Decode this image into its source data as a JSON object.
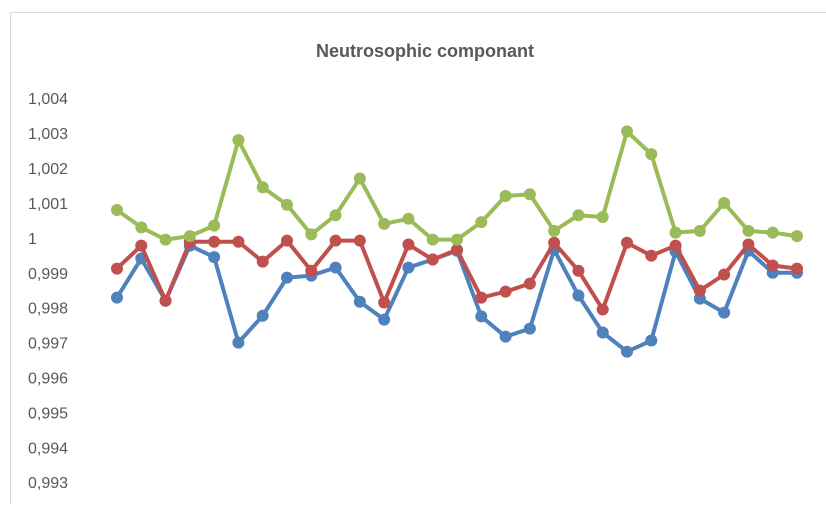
{
  "chart_data": {
    "type": "line",
    "title": "Neutrosophic componant",
    "categories": [
      null,
      null,
      null,
      null,
      null,
      null,
      null,
      null,
      null,
      null,
      null,
      null,
      null,
      null,
      null,
      null,
      null,
      null,
      null,
      null,
      null,
      null,
      null,
      null,
      null,
      null,
      null,
      null,
      null
    ],
    "series": [
      {
        "color": "#4f81bd",
        "values": [
          0.99834,
          0.99946,
          0.99825,
          0.99983,
          0.9995,
          0.99705,
          0.99782,
          0.99891,
          0.99897,
          0.9992,
          0.99822,
          0.99771,
          0.9992,
          0.99943,
          0.99968,
          0.9978,
          0.99722,
          0.99745,
          0.99971,
          0.9984,
          0.99734,
          0.99679,
          0.99711,
          0.99966,
          0.99831,
          0.99791,
          0.99968,
          0.99905,
          0.99905
        ]
      },
      {
        "color": "#c0504d",
        "values": [
          0.99917,
          0.99983,
          0.99825,
          0.99994,
          0.99994,
          0.99994,
          0.99937,
          0.99997,
          0.99911,
          0.99997,
          0.99997,
          0.9982,
          0.99986,
          0.99943,
          0.99971,
          0.99834,
          0.99851,
          0.99874,
          0.99991,
          0.99911,
          0.998,
          0.99991,
          0.99954,
          0.99983,
          0.99854,
          0.999,
          0.99986,
          0.99926,
          0.99917
        ]
      },
      {
        "color": "#9bbb59",
        "values": [
          1.00085,
          1.00035,
          1.0,
          1.0001,
          1.0004,
          1.00285,
          1.0015,
          1.001,
          1.00015,
          1.0007,
          1.00175,
          1.00045,
          1.0006,
          1.0,
          1.0,
          1.0005,
          1.00125,
          1.0013,
          1.00025,
          1.0007,
          1.00065,
          1.0031,
          1.00245,
          1.0002,
          1.00025,
          1.00105,
          1.00025,
          1.0002,
          1.0001
        ]
      }
    ],
    "ylim": [
      0.993,
      1.004
    ],
    "yticks": [
      {
        "value": 0.993,
        "label": "0,993"
      },
      {
        "value": 0.994,
        "label": "0,994"
      },
      {
        "value": 0.995,
        "label": "0,995"
      },
      {
        "value": 0.996,
        "label": "0,996"
      },
      {
        "value": 0.997,
        "label": "0,997"
      },
      {
        "value": 0.998,
        "label": "0,998"
      },
      {
        "value": 0.999,
        "label": "0,999"
      },
      1,
      {
        "value": 1.001,
        "label": "1,001"
      },
      {
        "value": 1.002,
        "label": "1,002"
      },
      {
        "value": 1.003,
        "label": "1,003"
      },
      {
        "value": 1.004,
        "label": "1,004"
      }
    ],
    "grid": false
  }
}
